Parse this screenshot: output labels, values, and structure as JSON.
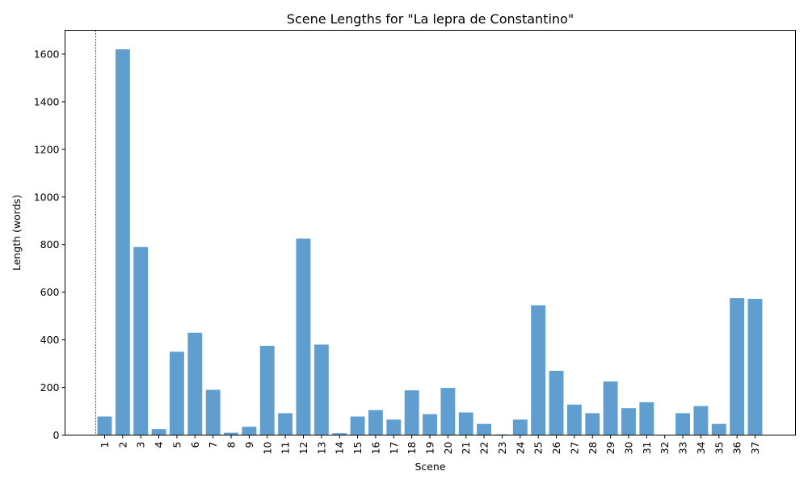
{
  "chart_data": {
    "type": "bar",
    "title": "Scene Lengths for \"La lepra de Constantino\"",
    "xlabel": "Scene",
    "ylabel": "Length (words)",
    "ylim": [
      0,
      1700
    ],
    "yticks": [
      0,
      200,
      400,
      600,
      800,
      1000,
      1200,
      1400,
      1600
    ],
    "categories": [
      "1",
      "2",
      "3",
      "4",
      "5",
      "6",
      "7",
      "8",
      "9",
      "10",
      "11",
      "12",
      "13",
      "14",
      "15",
      "16",
      "17",
      "18",
      "19",
      "20",
      "21",
      "22",
      "23",
      "24",
      "25",
      "26",
      "27",
      "28",
      "29",
      "30",
      "31",
      "32",
      "33",
      "34",
      "35",
      "36",
      "37"
    ],
    "values": [
      78,
      1620,
      790,
      25,
      350,
      430,
      190,
      10,
      35,
      375,
      92,
      825,
      380,
      8,
      78,
      105,
      65,
      188,
      88,
      198,
      95,
      47,
      3,
      65,
      545,
      270,
      128,
      92,
      225,
      113,
      138,
      0,
      92,
      122,
      47,
      575,
      572
    ],
    "bar_color": "#5f9ecf",
    "marker_line": {
      "at_category": "1",
      "style": "dashed",
      "color": "#000000"
    },
    "grid": false,
    "legend": "none"
  }
}
